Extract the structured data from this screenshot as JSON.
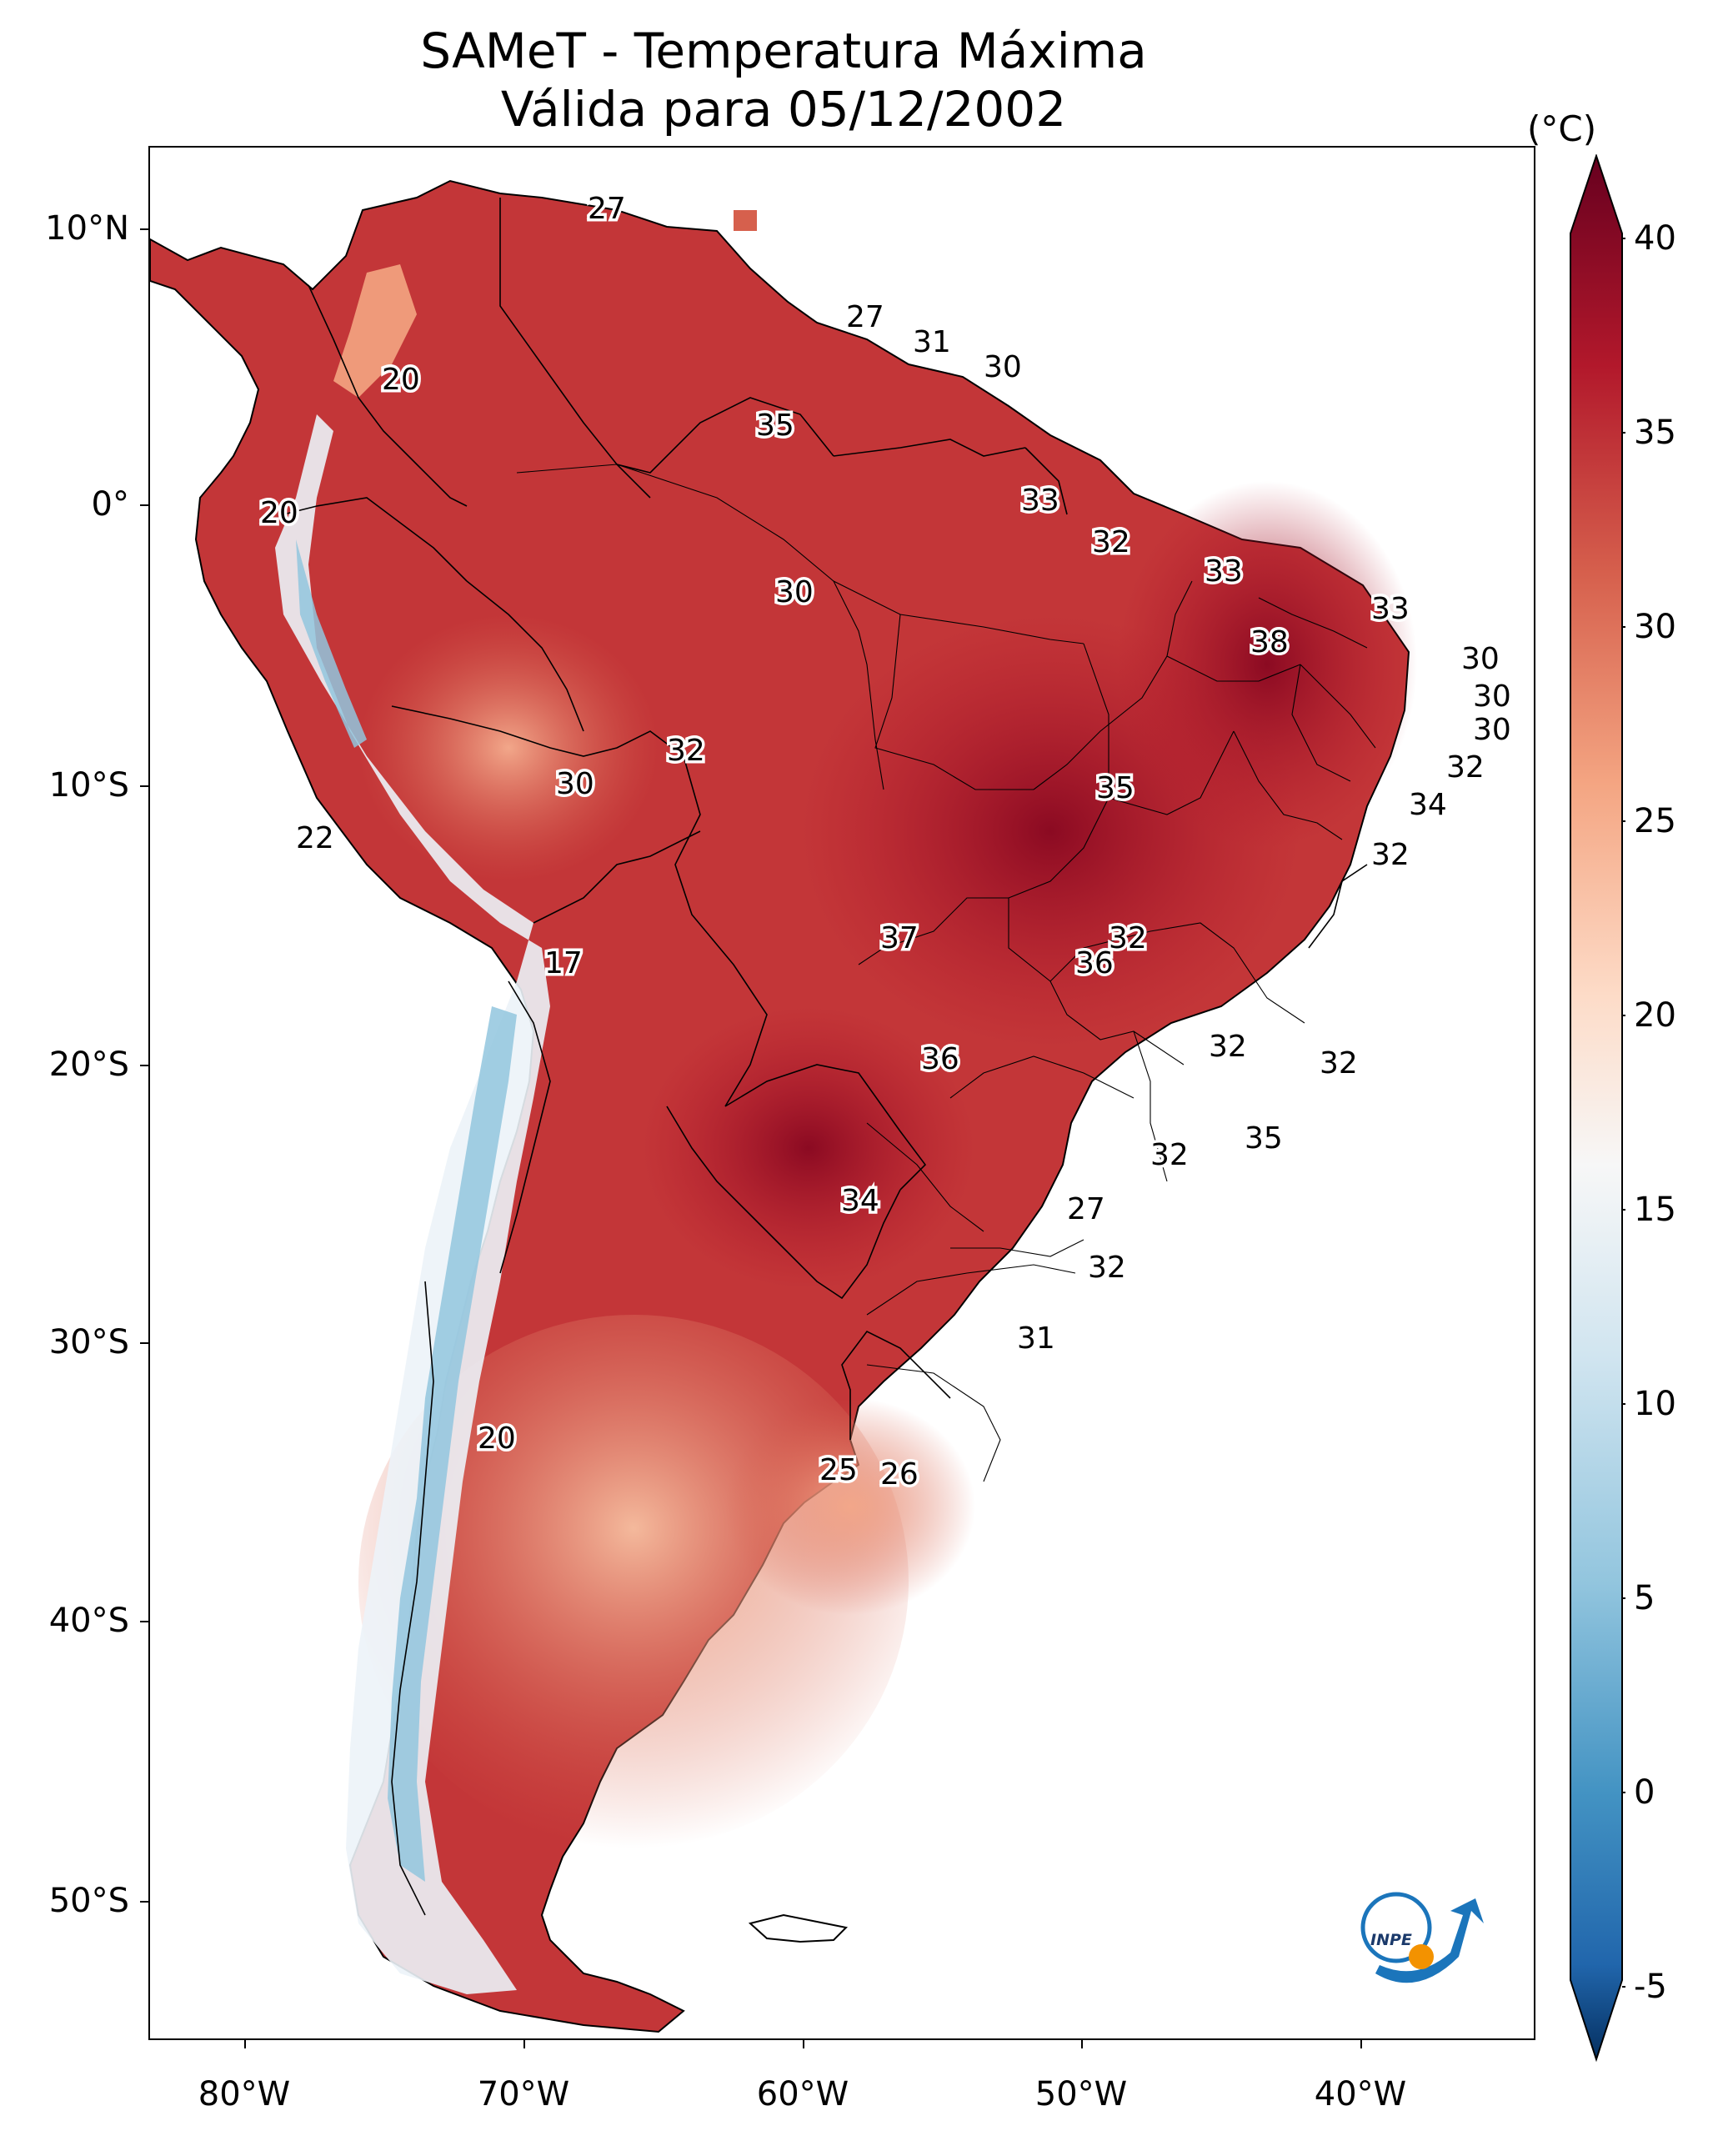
{
  "title": {
    "line1": "SAMeT - Temperatura Máxima",
    "line2": "Válida para 05/12/2002"
  },
  "axes": {
    "lat_labels": [
      "10°N",
      "0°",
      "10°S",
      "20°S",
      "30°S",
      "40°S",
      "50°S"
    ],
    "lon_labels": [
      "80°W",
      "70°W",
      "60°W",
      "50°W",
      "40°W"
    ]
  },
  "colorbar": {
    "unit": "(°C)",
    "min": -5,
    "max": 40,
    "tick_labels": [
      "40",
      "35",
      "30",
      "25",
      "20",
      "15",
      "10",
      "5",
      "0",
      "-5"
    ],
    "colors": {
      "hot": "#67001f",
      "warm": "#c6383a",
      "mild": "#f4a582",
      "neutral": "#f7f7f7",
      "cool": "#92c5de",
      "cold": "#053061"
    }
  },
  "contour_labels": [
    {
      "text": "27"
    },
    {
      "text": "20"
    },
    {
      "text": "27"
    },
    {
      "text": "31"
    },
    {
      "text": "30"
    },
    {
      "text": "35"
    },
    {
      "text": "20"
    },
    {
      "text": "33"
    },
    {
      "text": "32"
    },
    {
      "text": "30"
    },
    {
      "text": "33"
    },
    {
      "text": "33"
    },
    {
      "text": "38"
    },
    {
      "text": "30"
    },
    {
      "text": "30"
    },
    {
      "text": "30"
    },
    {
      "text": "32"
    },
    {
      "text": "32"
    },
    {
      "text": "30"
    },
    {
      "text": "35"
    },
    {
      "text": "34"
    },
    {
      "text": "22"
    },
    {
      "text": "32"
    },
    {
      "text": "17"
    },
    {
      "text": "37"
    },
    {
      "text": "32"
    },
    {
      "text": "36"
    },
    {
      "text": "32"
    },
    {
      "text": "36"
    },
    {
      "text": "32"
    },
    {
      "text": "35"
    },
    {
      "text": "32"
    },
    {
      "text": "34"
    },
    {
      "text": "27"
    },
    {
      "text": "32"
    },
    {
      "text": "31"
    },
    {
      "text": "20"
    },
    {
      "text": "25"
    },
    {
      "text": "26"
    }
  ],
  "logo": {
    "text": "INPE"
  }
}
